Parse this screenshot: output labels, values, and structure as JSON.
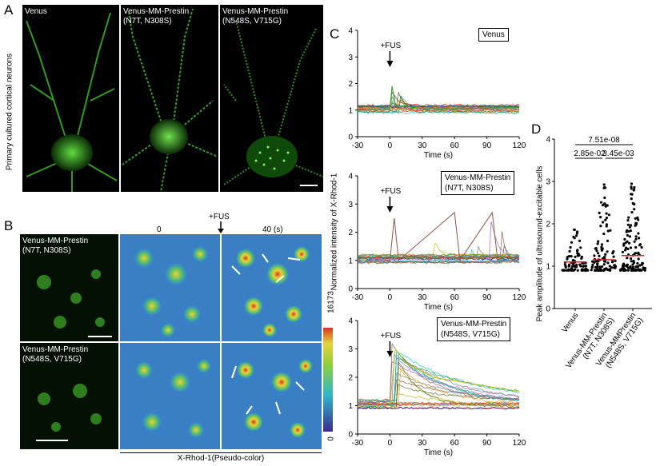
{
  "panel_letters": {
    "a": "A",
    "b": "B",
    "c": "C",
    "d": "D"
  },
  "panelA": {
    "side_label": "Primary cultured cortical neurons",
    "images": [
      {
        "label": "Venus"
      },
      {
        "label": "Venus-MM-Prestin\n(N7T, N308S)"
      },
      {
        "label": "Venus-MM-Prestin\n(N548S, V715G)"
      }
    ]
  },
  "panelB": {
    "rows": [
      {
        "label": "Venus-MM-Prestin\n(N7T, N308S)"
      },
      {
        "label": "Venus-MM-Prestin\n(N548S, V715G)"
      }
    ],
    "time_labels": [
      "0",
      "40 (s)"
    ],
    "fus_label": "+FUS",
    "colorbar_max": "16173",
    "colorbar_min": "0",
    "bottom_label": "X-Rhod-1(Pseudo-color)",
    "colors": {
      "low": "#3b2b8f",
      "mid": "#2fb6c9",
      "high": "#e8d23a",
      "top": "#d13a22"
    }
  },
  "panelC": {
    "ylabel": "Normalized intensity of X-Rhod-1",
    "fus_label": "+FUS",
    "xlabel": "Time (s)",
    "plots": [
      {
        "title": "Venus"
      },
      {
        "title": "Venus-MM-Prestin\n(N7T, N308S)"
      },
      {
        "title": "Venus-MM-Prestin\n(N548S, V715G)"
      }
    ],
    "xticks": [
      "-30",
      "0",
      "30",
      "60",
      "90",
      "120"
    ],
    "yticks": [
      "0",
      "1",
      "2",
      "3",
      "4"
    ]
  },
  "chart_data": [
    {
      "type": "line",
      "title": "Venus",
      "xlabel": "Time (s)",
      "ylabel": "Normalized intensity of X-Rhod-1",
      "xlim": [
        -30,
        120
      ],
      "ylim": [
        0,
        4
      ],
      "series": [
        {
          "values": [
            [
              -30,
              1.0
            ],
            [
              -10,
              1.02
            ],
            [
              0,
              1.05
            ],
            [
              2,
              1.9
            ],
            [
              5,
              1.2
            ],
            [
              30,
              1.05
            ],
            [
              60,
              1.05
            ],
            [
              120,
              1.1
            ]
          ]
        }
      ]
    },
    {
      "type": "line",
      "title": "Venus-MM-Prestin (N7T, N308S)",
      "xlabel": "Time (s)",
      "ylabel": "Normalized intensity of X-Rhod-1",
      "xlim": [
        -30,
        120
      ],
      "ylim": [
        0,
        4
      ],
      "series": [
        {
          "values": [
            [
              -30,
              1.0
            ],
            [
              0,
              1.0
            ],
            [
              4,
              2.5
            ],
            [
              8,
              1.0
            ],
            [
              60,
              2.7
            ],
            [
              65,
              1.0
            ],
            [
              95,
              2.7
            ],
            [
              100,
              1.0
            ],
            [
              120,
              1.0
            ]
          ]
        }
      ]
    },
    {
      "type": "line",
      "title": "Venus-MM-Prestin (N548S, V715G)",
      "xlabel": "Time (s)",
      "ylabel": "Normalized intensity of X-Rhod-1",
      "xlim": [
        -30,
        120
      ],
      "ylim": [
        0,
        4
      ],
      "series": [
        {
          "values": [
            [
              -30,
              1.0
            ],
            [
              0,
              1.0
            ],
            [
              5,
              3.0
            ],
            [
              15,
              2.5
            ],
            [
              40,
              2.0
            ],
            [
              120,
              1.5
            ]
          ]
        }
      ]
    },
    {
      "type": "scatter",
      "title": "",
      "xlabel": "",
      "ylabel": "Peak amplitude of ultrasound-excitable cells",
      "ylim": [
        0,
        4
      ],
      "categories": [
        "Venus",
        "Venus-MM-Prestin\n(N7T, N308S)",
        "Venus-MMPrestin\n(N548S, V715G)"
      ],
      "medians": [
        1.1,
        1.15,
        1.25
      ],
      "pvalues": [
        {
          "pair": [
            0,
            1
          ],
          "label": "2.85e-02"
        },
        {
          "pair": [
            1,
            2
          ],
          "label": "3.45e-03"
        },
        {
          "pair": [
            0,
            2
          ],
          "label": "7.51e-08"
        }
      ]
    }
  ],
  "panelD": {
    "ylabel": "Peak amplitude of ultrasound-excitable cells",
    "yticks": [
      "0",
      "1",
      "2",
      "3",
      "4"
    ],
    "categories": [
      "Venus",
      "Venus-MM-Prestin\n(N7T, N308S)",
      "Venus-MMPrestin\n(N548S, V715G)"
    ],
    "p1": "2.85e-02",
    "p2": "3.45e-03",
    "p3": "7.51e-08",
    "median_color": "#e02020"
  }
}
